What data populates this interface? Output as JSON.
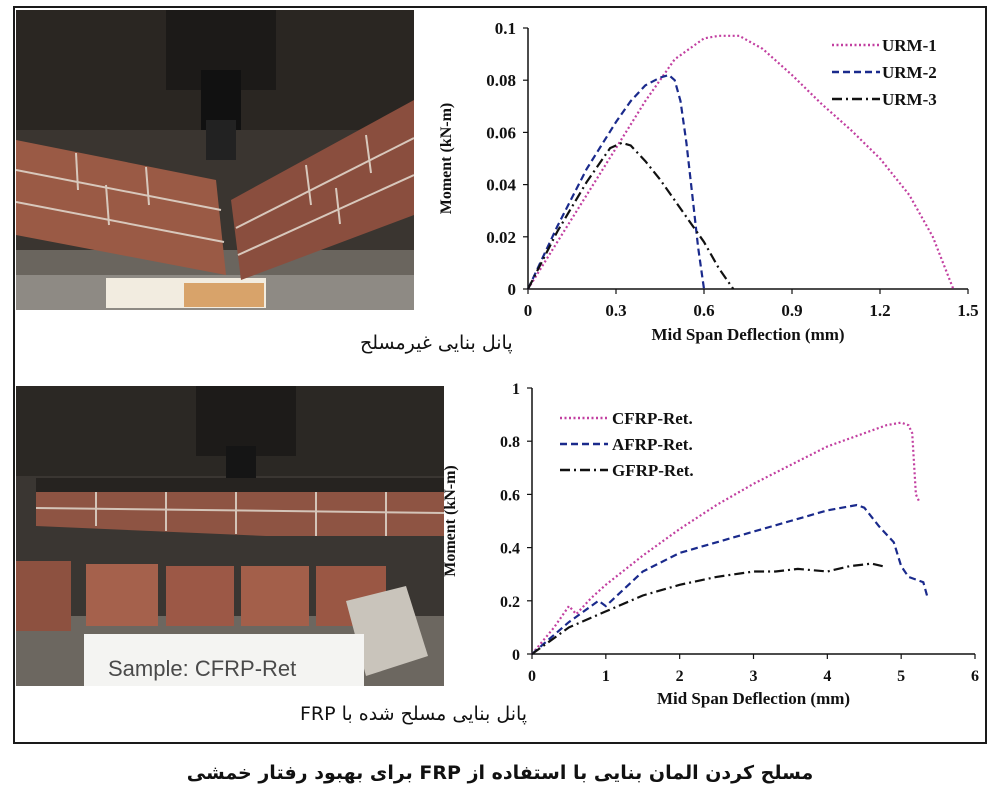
{
  "captions": {
    "top": "پانل بنایی غیرمسلح",
    "bottom": "پانل بنایی مسلح شده با FRP",
    "figure": "مسلح کردن المان بنایی با استفاده از FRP برای بهبود رفتار خمشی"
  },
  "photos": {
    "bottom_sign": "Sample: CFRP-Ret"
  },
  "chart_data": [
    {
      "type": "line",
      "xlabel": "Mid Span Deflection (mm)",
      "ylabel": "Moment (kN-m)",
      "xlim": [
        0,
        1.5
      ],
      "ylim": [
        0,
        0.1
      ],
      "xticks": [
        "0",
        "0.3",
        "0.6",
        "0.9",
        "1.2",
        "1.5"
      ],
      "yticks": [
        "0",
        "0.02",
        "0.04",
        "0.06",
        "0.08",
        "0.1"
      ],
      "legend_position": "top-right",
      "grid": false,
      "series": [
        {
          "name": "URM-1",
          "color": "#c23fa0",
          "style": "dotted",
          "x": [
            0,
            0.1,
            0.2,
            0.3,
            0.4,
            0.5,
            0.6,
            0.65,
            0.72,
            0.8,
            0.9,
            1.0,
            1.1,
            1.2,
            1.3,
            1.38,
            1.45
          ],
          "y": [
            0,
            0.018,
            0.036,
            0.054,
            0.072,
            0.088,
            0.096,
            0.097,
            0.097,
            0.092,
            0.082,
            0.071,
            0.061,
            0.05,
            0.036,
            0.02,
            0
          ]
        },
        {
          "name": "URM-2",
          "color": "#1a2a8c",
          "style": "dashed",
          "x": [
            0,
            0.1,
            0.2,
            0.3,
            0.35,
            0.4,
            0.45,
            0.48,
            0.5,
            0.52,
            0.54,
            0.56,
            0.58,
            0.6
          ],
          "y": [
            0,
            0.024,
            0.046,
            0.064,
            0.072,
            0.078,
            0.081,
            0.082,
            0.08,
            0.072,
            0.056,
            0.036,
            0.016,
            0
          ]
        },
        {
          "name": "URM-3",
          "color": "#111111",
          "style": "dashdot",
          "x": [
            0,
            0.1,
            0.2,
            0.28,
            0.32,
            0.35,
            0.4,
            0.45,
            0.5,
            0.55,
            0.6,
            0.65,
            0.7
          ],
          "y": [
            0,
            0.022,
            0.041,
            0.054,
            0.056,
            0.055,
            0.049,
            0.042,
            0.034,
            0.026,
            0.018,
            0.008,
            0
          ]
        }
      ]
    },
    {
      "type": "line",
      "xlabel": "Mid Span Deflection (mm)",
      "ylabel": "Moment (kN-m)",
      "xlim": [
        0,
        6
      ],
      "ylim": [
        0,
        1
      ],
      "xticks": [
        "0",
        "1",
        "2",
        "3",
        "4",
        "5",
        "6"
      ],
      "yticks": [
        "0",
        "0.2",
        "0.4",
        "0.6",
        "0.8",
        "1"
      ],
      "legend_position": "top-left",
      "grid": false,
      "series": [
        {
          "name": "CFRP-Ret.",
          "color": "#c23fa0",
          "style": "dotted",
          "x": [
            0,
            0.3,
            0.5,
            0.6,
            0.8,
            1,
            1.5,
            2,
            2.5,
            3,
            3.5,
            4,
            4.5,
            4.8,
            5.0,
            5.1,
            5.15,
            5.2,
            5.25
          ],
          "y": [
            0,
            0.1,
            0.18,
            0.15,
            0.21,
            0.26,
            0.37,
            0.47,
            0.56,
            0.64,
            0.71,
            0.78,
            0.83,
            0.86,
            0.87,
            0.86,
            0.83,
            0.6,
            0.57
          ]
        },
        {
          "name": "AFRP-Ret.",
          "color": "#1a2a8c",
          "style": "dashed",
          "x": [
            0,
            0.5,
            0.9,
            1,
            1.5,
            2,
            2.5,
            3,
            3.5,
            4,
            4.4,
            4.5,
            4.7,
            4.9,
            5.0,
            5.1,
            5.3,
            5.35
          ],
          "y": [
            0,
            0.12,
            0.2,
            0.18,
            0.31,
            0.38,
            0.42,
            0.46,
            0.5,
            0.54,
            0.56,
            0.55,
            0.48,
            0.42,
            0.33,
            0.29,
            0.27,
            0.22
          ]
        },
        {
          "name": "GFRP-Ret.",
          "color": "#111111",
          "style": "dashdot",
          "x": [
            0,
            0.5,
            1,
            1.5,
            2,
            2.5,
            3,
            3.3,
            3.6,
            4,
            4.3,
            4.6,
            4.75
          ],
          "y": [
            0,
            0.1,
            0.16,
            0.22,
            0.26,
            0.29,
            0.31,
            0.31,
            0.32,
            0.31,
            0.33,
            0.34,
            0.33
          ]
        }
      ]
    }
  ]
}
